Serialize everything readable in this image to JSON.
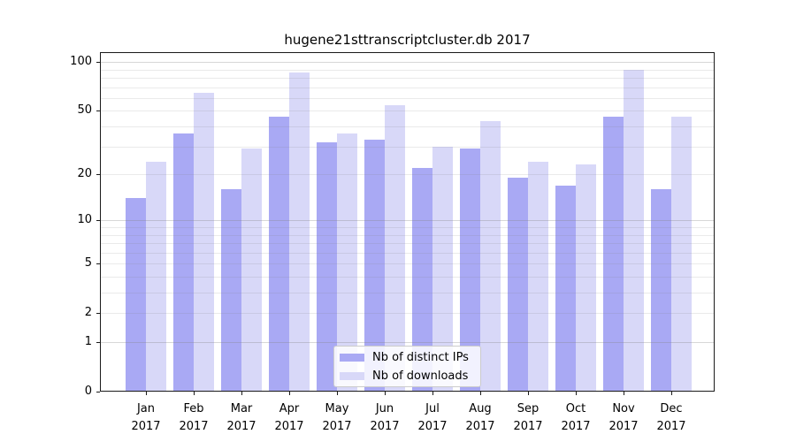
{
  "title": "hugene21sttranscriptcluster.db 2017",
  "chart_data": {
    "type": "bar",
    "title": "hugene21sttranscriptcluster.db 2017",
    "categories": [
      "Jan 2017",
      "Feb 2017",
      "Mar 2017",
      "Apr 2017",
      "May 2017",
      "Jun 2017",
      "Jul 2017",
      "Aug 2017",
      "Sep 2017",
      "Oct 2017",
      "Nov 2017",
      "Dec 2017"
    ],
    "series": [
      {
        "name": "Nb of distinct IPs",
        "color": "#a9a9f4",
        "values": [
          14,
          36,
          16,
          46,
          32,
          33,
          22,
          29,
          19,
          17,
          46,
          16
        ]
      },
      {
        "name": "Nb of downloads",
        "color": "#d8d8f8",
        "values": [
          24,
          65,
          29,
          86,
          36,
          54,
          30,
          43,
          24,
          23,
          90,
          46
        ]
      }
    ],
    "xlabel": "",
    "ylabel": "",
    "yscale": "log1p",
    "ylim": [
      0,
      115
    ],
    "yticks": [
      0,
      1,
      2,
      5,
      10,
      20,
      50,
      100
    ],
    "ytick_labels": [
      "0",
      "1",
      "2",
      "5",
      "10",
      "20",
      "50",
      "100"
    ],
    "gridlines_minor": [
      2,
      3,
      4,
      5,
      6,
      7,
      8,
      9,
      20,
      30,
      40,
      50,
      60,
      70,
      80,
      90
    ],
    "gridlines_major": [
      1,
      10,
      100
    ],
    "grid": true,
    "legend_position": "lower center"
  },
  "legend": {
    "items": [
      {
        "label": "Nb of distinct IPs"
      },
      {
        "label": "Nb of downloads"
      }
    ]
  },
  "colors": {
    "distinct_ips": "#a9a9f4",
    "downloads": "#d8d8f8",
    "gridline_minor": "rgba(130,130,130,0.17)",
    "gridline_major": "rgba(130,130,130,0.32)",
    "spine": "#1a1a1a",
    "text": "#000000"
  }
}
